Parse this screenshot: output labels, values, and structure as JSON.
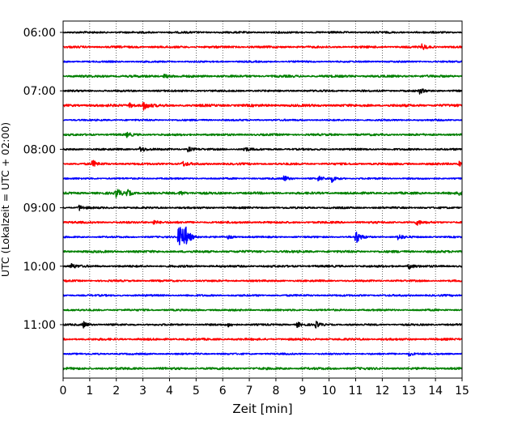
{
  "chart_data": {
    "type": "line",
    "title": "",
    "xlabel": "Zeit  [min]",
    "ylabel": "UTC (Lokalzeit = UTC + 02:00)",
    "xlim": [
      0,
      15
    ],
    "x_ticks": [
      0,
      1,
      2,
      3,
      4,
      5,
      6,
      7,
      8,
      9,
      10,
      11,
      12,
      13,
      14,
      15
    ],
    "x_gridlines": "dotted at each minute",
    "y_ticks": [
      "06:00",
      "07:00",
      "08:00",
      "09:00",
      "10:00",
      "11:00"
    ],
    "trace_interval_minutes": 15,
    "trace_colors": [
      "#000000",
      "#ff0000",
      "#0000ff",
      "#008000"
    ],
    "traces": [
      {
        "start": "06:00",
        "noise": 0.9,
        "events": []
      },
      {
        "start": "06:15",
        "noise": 1.0,
        "events": [
          {
            "t": 13.5,
            "amp": 3.5
          }
        ]
      },
      {
        "start": "06:30",
        "noise": 0.8,
        "events": []
      },
      {
        "start": "06:45",
        "noise": 1.1,
        "events": [
          {
            "t": 3.8,
            "amp": 2.5
          }
        ]
      },
      {
        "start": "07:00",
        "noise": 0.9,
        "events": [
          {
            "t": 13.4,
            "amp": 3
          }
        ]
      },
      {
        "start": "07:15",
        "noise": 1.2,
        "events": [
          {
            "t": 3.0,
            "amp": 6
          },
          {
            "t": 2.5,
            "amp": 3
          }
        ]
      },
      {
        "start": "07:30",
        "noise": 0.8,
        "events": []
      },
      {
        "start": "07:45",
        "noise": 1.0,
        "events": [
          {
            "t": 2.4,
            "amp": 2.5
          }
        ]
      },
      {
        "start": "08:00",
        "noise": 0.9,
        "events": [
          {
            "t": 2.9,
            "amp": 4
          },
          {
            "t": 4.7,
            "amp": 3
          },
          {
            "t": 6.8,
            "amp": 3
          }
        ]
      },
      {
        "start": "08:15",
        "noise": 1.0,
        "events": [
          {
            "t": 1.1,
            "amp": 4
          },
          {
            "t": 4.5,
            "amp": 3
          },
          {
            "t": 14.9,
            "amp": 3
          }
        ]
      },
      {
        "start": "08:30",
        "noise": 0.8,
        "events": [
          {
            "t": 8.3,
            "amp": 3.5
          },
          {
            "t": 9.6,
            "amp": 3
          },
          {
            "t": 10.1,
            "amp": 4
          }
        ]
      },
      {
        "start": "08:45",
        "noise": 1.1,
        "events": [
          {
            "t": 2.0,
            "amp": 6
          },
          {
            "t": 2.4,
            "amp": 4
          },
          {
            "t": 4.4,
            "amp": 3
          },
          {
            "t": 14.9,
            "amp": 3
          }
        ]
      },
      {
        "start": "09:00",
        "noise": 0.9,
        "events": [
          {
            "t": 0.6,
            "amp": 3.5
          }
        ]
      },
      {
        "start": "09:15",
        "noise": 1.0,
        "events": [
          {
            "t": 3.4,
            "amp": 3
          },
          {
            "t": 13.3,
            "amp": 3
          }
        ]
      },
      {
        "start": "09:30",
        "noise": 0.8,
        "events": [
          {
            "t": 4.35,
            "amp": 28
          },
          {
            "t": 4.6,
            "amp": 10
          },
          {
            "t": 6.2,
            "amp": 2.5
          },
          {
            "t": 11.0,
            "amp": 9
          },
          {
            "t": 12.6,
            "amp": 4
          }
        ]
      },
      {
        "start": "09:45",
        "noise": 1.1,
        "events": []
      },
      {
        "start": "10:00",
        "noise": 1.0,
        "events": [
          {
            "t": 0.3,
            "amp": 3
          },
          {
            "t": 13.0,
            "amp": 3
          }
        ]
      },
      {
        "start": "10:15",
        "noise": 0.9,
        "events": []
      },
      {
        "start": "10:30",
        "noise": 0.9,
        "events": []
      },
      {
        "start": "10:45",
        "noise": 0.9,
        "events": []
      },
      {
        "start": "11:00",
        "noise": 0.9,
        "events": [
          {
            "t": 0.75,
            "amp": 4
          },
          {
            "t": 6.2,
            "amp": 2.5
          },
          {
            "t": 8.8,
            "amp": 3
          },
          {
            "t": 9.5,
            "amp": 3.5
          }
        ]
      },
      {
        "start": "11:15",
        "noise": 1.0,
        "events": []
      },
      {
        "start": "11:30",
        "noise": 0.8,
        "events": [
          {
            "t": 13.0,
            "amp": 2.5
          }
        ]
      },
      {
        "start": "11:45",
        "noise": 1.1,
        "events": []
      }
    ]
  }
}
